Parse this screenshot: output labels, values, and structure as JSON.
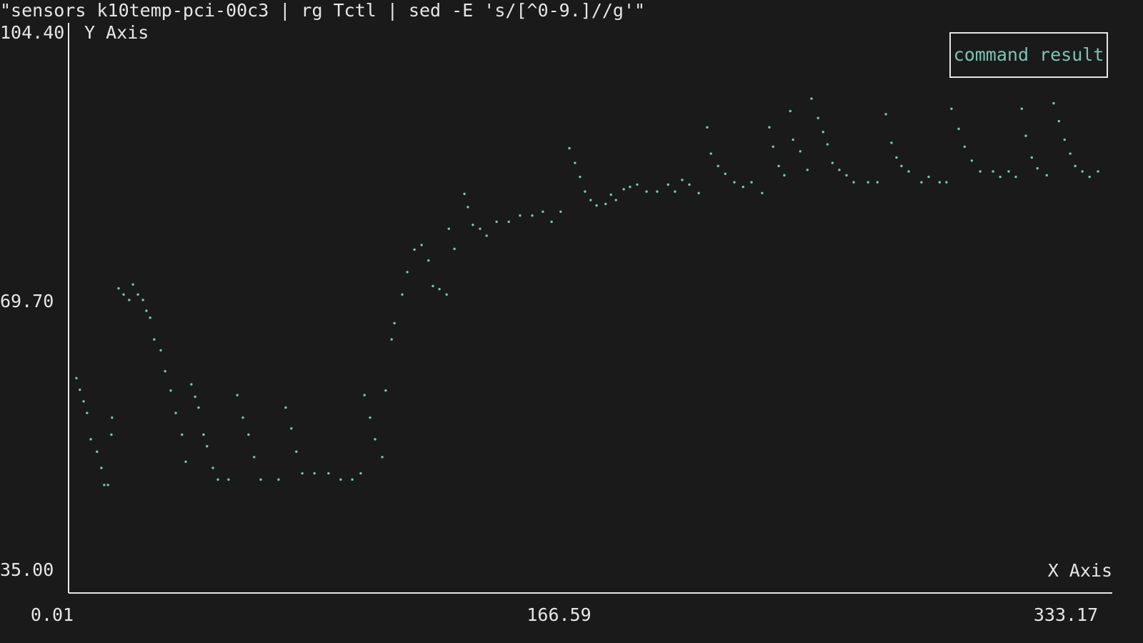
{
  "chart_data": {
    "type": "scatter",
    "title": "\"sensors k10temp-pci-00c3 | rg Tctl | sed -E 's/[^0-9.]//g'\"",
    "y_label": "Y Axis",
    "x_label": "X Axis",
    "xlim": [
      0.01,
      333.17
    ],
    "xticks": [
      0.01,
      166.59,
      333.17
    ],
    "ylim": [
      35.0,
      104.4
    ],
    "yticks": [
      {
        "value": 35.0,
        "label": "35.00"
      },
      {
        "value": 69.7,
        "label": "69.70"
      },
      {
        "value": 104.4,
        "label": "104.40"
      }
    ],
    "legend": "top-right",
    "series": [
      {
        "name": "command result",
        "color": "#7cc4b2",
        "x": [
          1.6,
          2.7,
          3.9,
          5.0,
          6.2,
          8.2,
          9.6,
          10.5,
          11.7,
          12.8,
          13.0,
          15.1,
          16.7,
          18.5,
          19.7,
          21.3,
          22.9,
          24.0,
          25.2,
          26.5,
          28.6,
          30.0,
          31.8,
          33.4,
          35.4,
          36.6,
          38.4,
          39.6,
          40.7,
          42.3,
          43.4,
          45.3,
          46.9,
          50.3,
          53.1,
          54.9,
          56.7,
          58.5,
          60.6,
          66.3,
          68.6,
          70.4,
          72.0,
          73.9,
          77.8,
          82.3,
          86.2,
          89.9,
          92.6,
          93.8,
          95.6,
          97.2,
          99.5,
          100.6,
          102.5,
          103.4,
          105.9,
          107.5,
          109.8,
          112.1,
          114.3,
          115.7,
          117.8,
          120.1,
          120.8,
          122.6,
          125.8,
          126.9,
          128.5,
          130.8,
          132.9,
          136.1,
          140.0,
          143.6,
          147.5,
          150.9,
          153.7,
          156.6,
          159.4,
          161.2,
          162.8,
          164.4,
          166.2,
          168.1,
          171.0,
          172.7,
          174.3,
          176.8,
          178.8,
          181.1,
          184.1,
          187.5,
          191.0,
          193.2,
          195.5,
          197.8,
          200.8,
          203.5,
          204.7,
          207.0,
          209.3,
          212.2,
          215.0,
          217.7,
          221.1,
          223.4,
          224.6,
          226.4,
          228.2,
          230.1,
          231.0,
          233.3,
          235.6,
          236.9,
          239.0,
          240.6,
          242.0,
          243.6,
          245.8,
          248.1,
          250.4,
          255.0,
          258.0,
          260.7,
          262.5,
          264.1,
          265.7,
          268.0,
          272.1,
          274.4,
          277.9,
          280.1,
          281.7,
          284.0,
          285.9,
          288.2,
          290.9,
          295.0,
          297.3,
          300.0,
          302.3,
          304.2,
          305.5,
          307.4,
          309.2,
          312.2,
          314.4,
          316.1,
          317.9,
          319.7,
          321.3,
          323.6,
          325.9,
          328.6
        ],
        "values": [
          59.8,
          58.3,
          56.8,
          55.3,
          51.9,
          50.3,
          48.2,
          46.0,
          46.0,
          52.5,
          54.7,
          71.4,
          70.6,
          69.9,
          71.9,
          70.6,
          69.9,
          68.5,
          67.6,
          64.8,
          63.4,
          60.7,
          58.2,
          55.3,
          52.5,
          49.0,
          59.0,
          57.4,
          56.0,
          52.5,
          51.0,
          48.2,
          46.7,
          46.7,
          57.6,
          54.7,
          52.5,
          49.6,
          46.7,
          46.7,
          56.0,
          53.3,
          50.3,
          47.5,
          47.5,
          47.5,
          46.7,
          46.7,
          47.5,
          57.6,
          54.7,
          51.9,
          49.6,
          58.2,
          64.8,
          66.9,
          70.6,
          73.5,
          76.4,
          77.0,
          75.0,
          71.7,
          71.3,
          70.6,
          79.1,
          76.5,
          83.6,
          81.9,
          79.6,
          79.1,
          78.2,
          80.0,
          80.0,
          80.8,
          80.8,
          81.3,
          80.0,
          81.3,
          89.5,
          87.6,
          85.8,
          83.9,
          82.8,
          82.1,
          82.3,
          83.5,
          82.8,
          84.2,
          84.5,
          84.8,
          83.9,
          83.9,
          84.8,
          83.9,
          85.4,
          84.8,
          83.7,
          92.2,
          88.8,
          87.2,
          86.2,
          85.1,
          84.5,
          85.1,
          83.7,
          92.2,
          89.7,
          87.2,
          86.0,
          94.3,
          90.6,
          89.1,
          86.7,
          95.9,
          93.4,
          91.6,
          90.0,
          87.6,
          86.7,
          86.0,
          85.1,
          85.1,
          85.1,
          93.9,
          90.2,
          88.3,
          87.2,
          86.5,
          85.1,
          85.8,
          85.1,
          85.1,
          94.6,
          92.0,
          89.7,
          87.9,
          86.5,
          86.5,
          85.8,
          86.5,
          85.8,
          94.6,
          91.1,
          88.3,
          86.9,
          86.0,
          95.3,
          93.0,
          90.6,
          88.8,
          87.2,
          86.5,
          85.8,
          86.5
        ]
      }
    ]
  }
}
